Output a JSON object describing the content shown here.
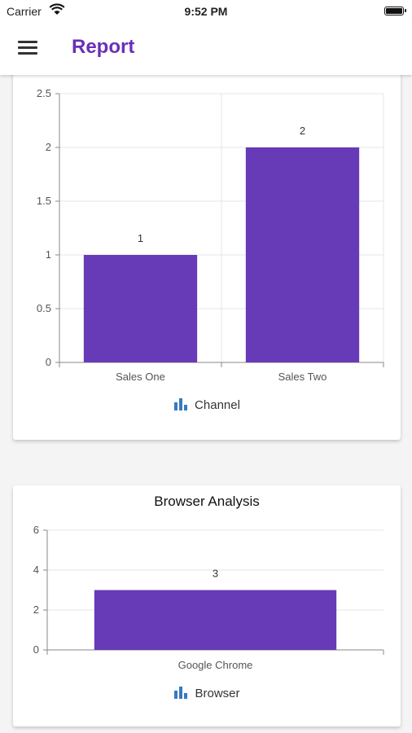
{
  "status_bar": {
    "carrier": "Carrier",
    "time": "9:52 PM"
  },
  "app_bar": {
    "title": "Report"
  },
  "colors": {
    "accent": "#6a2fb8",
    "bar": "#673ab7"
  },
  "icons": {
    "menu": "menu-icon",
    "legend": "bar-chart-icon",
    "wifi": "wifi-icon",
    "battery": "battery-icon"
  },
  "chart_data": [
    {
      "type": "bar",
      "title": "",
      "categories": [
        "Sales One",
        "Sales Two"
      ],
      "series": [
        {
          "name": "Channel",
          "values": [
            1,
            2
          ]
        }
      ],
      "ylim": [
        0,
        2.5
      ],
      "yticks": [
        "0",
        "0.5",
        "1",
        "1.5",
        "2",
        "2.5"
      ],
      "data_labels": [
        "1",
        "2"
      ],
      "legend": "bottom",
      "grid": true
    },
    {
      "type": "bar",
      "title": "Browser Analysis",
      "categories": [
        "Google Chrome"
      ],
      "series": [
        {
          "name": "Browser",
          "values": [
            3
          ]
        }
      ],
      "ylim": [
        0,
        6
      ],
      "yticks": [
        "0",
        "2",
        "4",
        "6"
      ],
      "data_labels": [
        "3"
      ],
      "legend": "bottom",
      "grid": true
    }
  ]
}
